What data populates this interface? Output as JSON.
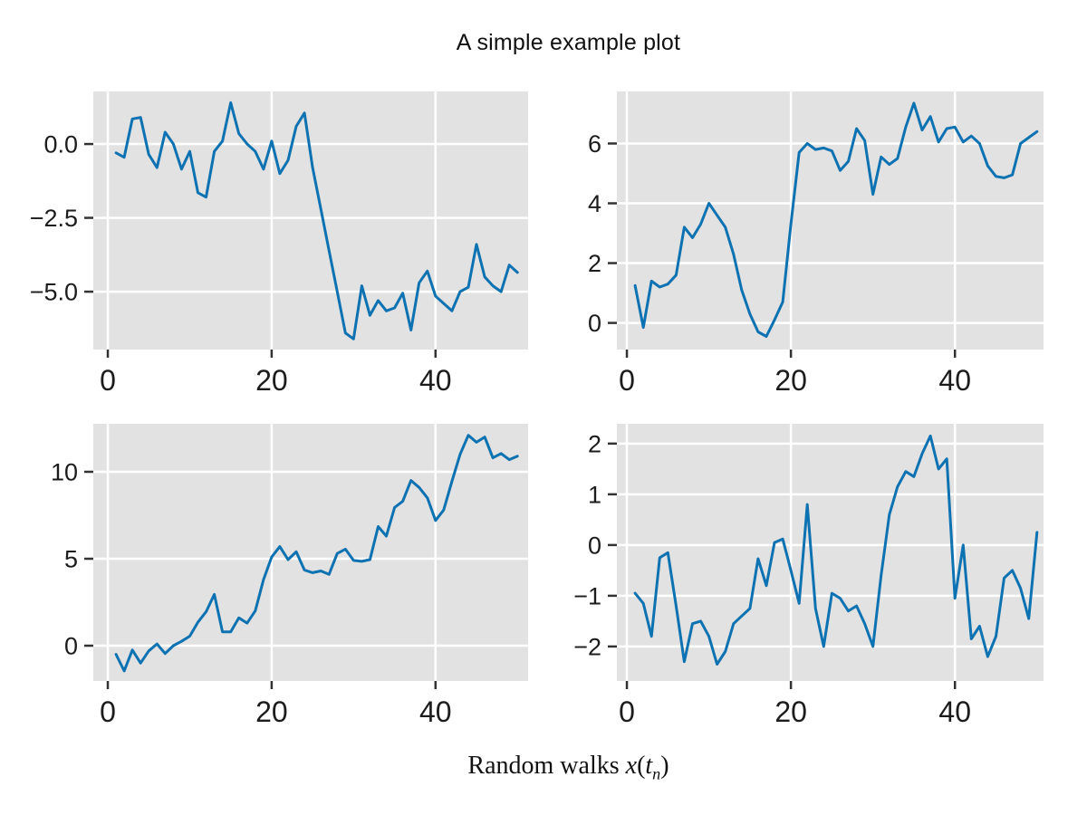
{
  "figure": {
    "title": "A simple example plot"
  },
  "xlabel": {
    "prefix": "Random walks ",
    "var": "x",
    "open": "(",
    "tvar": "t",
    "sub": "n",
    "close": ")"
  },
  "colors": {
    "line": "#0d72b2",
    "panel_bg": "#e2e2e2",
    "grid": "#ffffff",
    "tick": "#333333",
    "text": "#1c1c1c"
  },
  "chart_data": [
    {
      "id": "top-left",
      "type": "line",
      "x_start": 1,
      "x_step": 1,
      "values": [
        -0.3,
        -0.45,
        0.85,
        0.9,
        -0.35,
        -0.8,
        0.4,
        0.0,
        -0.85,
        -0.25,
        -1.65,
        -1.8,
        -0.25,
        0.1,
        1.4,
        0.35,
        0.0,
        -0.25,
        -0.85,
        0.1,
        -1.0,
        -0.55,
        0.6,
        1.05,
        -0.8,
        -2.2,
        -3.6,
        -5.0,
        -6.4,
        -6.6,
        -4.8,
        -5.8,
        -5.3,
        -5.65,
        -5.55,
        -5.05,
        -6.3,
        -4.7,
        -4.3,
        -5.15,
        -5.4,
        -5.65,
        -5.0,
        -4.85,
        -3.4,
        -4.5,
        -4.8,
        -5.0,
        -4.1,
        -4.35
      ],
      "xticks": [
        0,
        20,
        40
      ],
      "xtick_labels": [
        "0",
        "20",
        "40"
      ],
      "yticks": [
        0,
        -2.5,
        -5
      ],
      "ytick_labels": [
        "0.0",
        "−2.5",
        "−5.0"
      ],
      "xlim": [
        -1.77,
        51.3
      ],
      "ylim": [
        -6.96,
        1.78
      ],
      "grid": true
    },
    {
      "id": "top-right",
      "type": "line",
      "x_start": 1,
      "x_step": 1,
      "values": [
        1.25,
        -0.15,
        1.4,
        1.2,
        1.3,
        1.6,
        3.2,
        2.85,
        3.3,
        4.0,
        3.6,
        3.2,
        2.3,
        1.1,
        0.3,
        -0.3,
        -0.45,
        0.1,
        0.7,
        3.3,
        5.7,
        6.0,
        5.8,
        5.85,
        5.75,
        5.1,
        5.4,
        6.5,
        6.1,
        4.3,
        5.55,
        5.3,
        5.5,
        6.55,
        7.35,
        6.45,
        6.9,
        6.05,
        6.5,
        6.55,
        6.05,
        6.25,
        6.0,
        5.25,
        4.9,
        4.85,
        4.95,
        6.0,
        6.2,
        6.4
      ],
      "xticks": [
        0,
        20,
        40
      ],
      "xtick_labels": [
        "0",
        "20",
        "40"
      ],
      "yticks": [
        6,
        4,
        2,
        0
      ],
      "ytick_labels": [
        "6",
        "4",
        "2",
        "0"
      ],
      "xlim": [
        -1.22,
        50.8
      ],
      "ylim": [
        -0.89,
        7.74
      ],
      "grid": true
    },
    {
      "id": "bottom-left",
      "type": "line",
      "x_start": 1,
      "x_step": 1,
      "values": [
        -0.5,
        -1.45,
        -0.25,
        -1.0,
        -0.3,
        0.1,
        -0.45,
        0.0,
        0.25,
        0.55,
        1.35,
        1.95,
        2.95,
        0.8,
        0.8,
        1.6,
        1.3,
        2.0,
        3.8,
        5.1,
        5.7,
        4.95,
        5.4,
        4.35,
        4.2,
        4.3,
        4.1,
        5.3,
        5.55,
        4.9,
        4.85,
        4.95,
        6.85,
        6.3,
        7.95,
        8.3,
        9.5,
        9.1,
        8.5,
        7.2,
        7.8,
        9.45,
        11.0,
        12.1,
        11.7,
        12.0,
        10.8,
        11.05,
        10.7,
        10.9
      ],
      "xticks": [
        0,
        20,
        40
      ],
      "xtick_labels": [
        "0",
        "20",
        "40"
      ],
      "yticks": [
        10,
        5,
        0
      ],
      "ytick_labels": [
        "10",
        "5",
        "0"
      ],
      "xlim": [
        -1.77,
        51.3
      ],
      "ylim": [
        -2.03,
        12.76
      ],
      "grid": true
    },
    {
      "id": "bottom-right",
      "type": "line",
      "x_start": 1,
      "x_step": 1,
      "values": [
        -0.95,
        -1.15,
        -1.8,
        -0.25,
        -0.15,
        -1.2,
        -2.3,
        -1.55,
        -1.5,
        -1.8,
        -2.35,
        -2.1,
        -1.55,
        -1.4,
        -1.25,
        -0.27,
        -0.8,
        0.05,
        0.12,
        -0.5,
        -1.15,
        0.8,
        -1.25,
        -2.0,
        -0.95,
        -1.05,
        -1.3,
        -1.2,
        -1.55,
        -2.0,
        -0.6,
        0.6,
        1.15,
        1.45,
        1.35,
        1.8,
        2.15,
        1.5,
        1.7,
        -1.05,
        0.0,
        -1.85,
        -1.6,
        -2.2,
        -1.8,
        -0.65,
        -0.5,
        -0.85,
        -1.45,
        0.25
      ],
      "xticks": [
        0,
        20,
        40
      ],
      "xtick_labels": [
        "0",
        "20",
        "40"
      ],
      "yticks": [
        2,
        1,
        0,
        -1,
        -2
      ],
      "ytick_labels": [
        "2",
        "1",
        "0",
        "−1",
        "−2"
      ],
      "xlim": [
        -1.22,
        50.8
      ],
      "ylim": [
        -2.68,
        2.39
      ],
      "grid": true
    }
  ]
}
